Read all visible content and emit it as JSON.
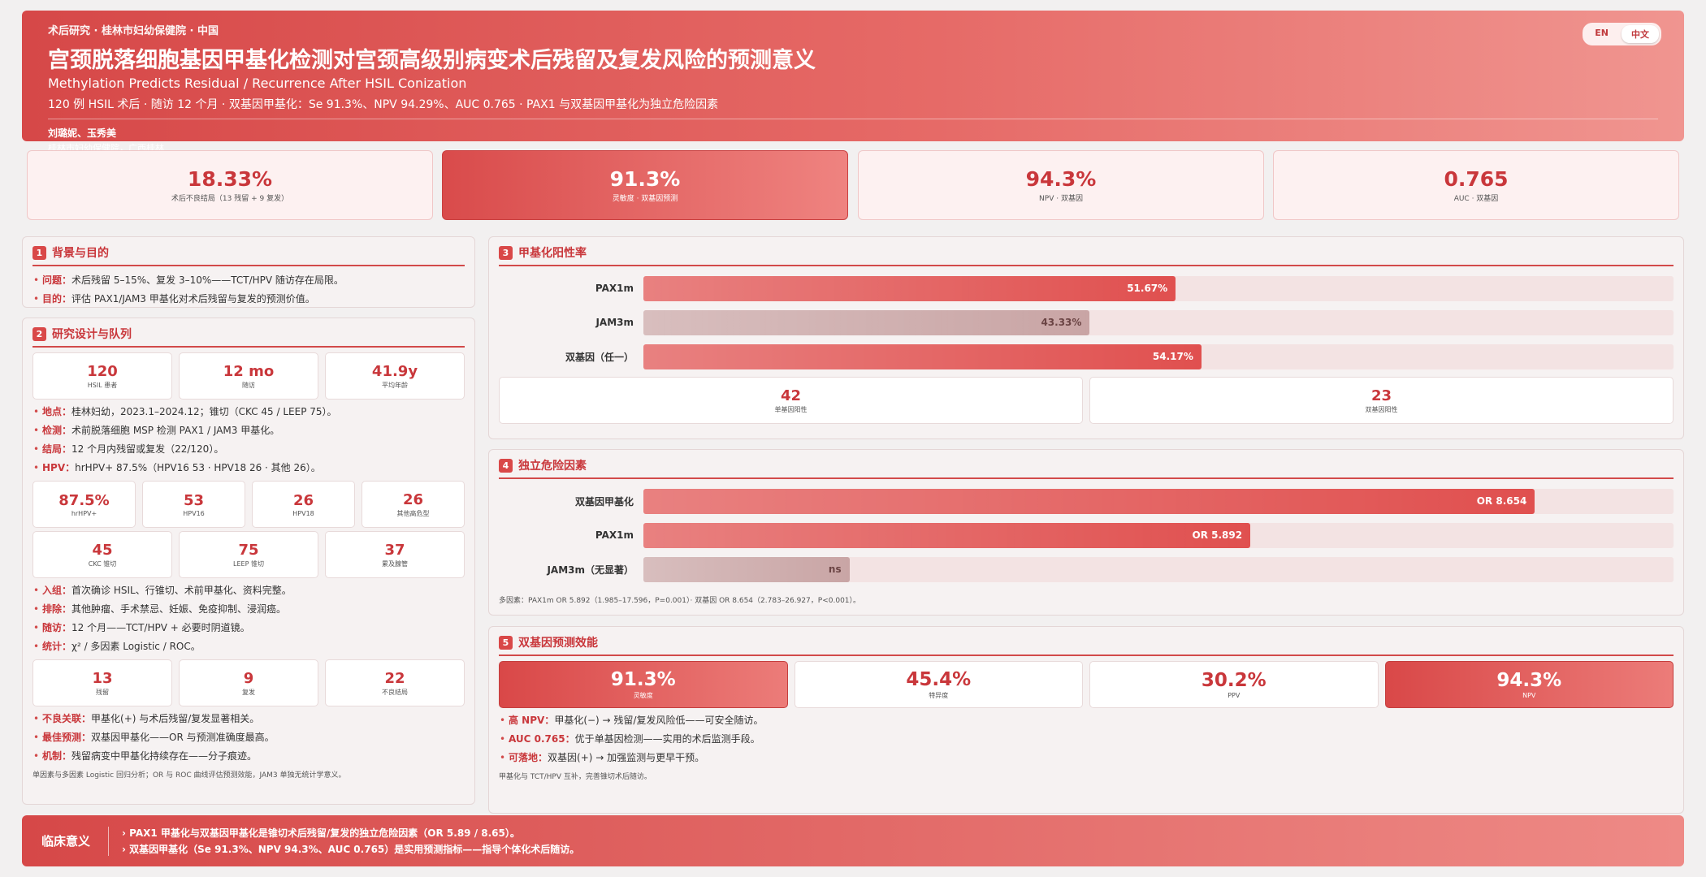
{
  "header": {
    "kicker": "术后研究 · 桂林市妇幼保健院 · 中国",
    "title": "宫颈脱落细胞基因甲基化检测对宫颈高级别病变术后残留及复发风险的预测意义",
    "subtitle": "Methylation Predicts Residual / Recurrence After HSIL Conization",
    "summary": "120 例 HSIL 术后 · 随访 12 个月 · 双基因甲基化：Se 91.3%、NPV 94.29%、AUC 0.765 · PAX1 与双基因甲基化为独立危险因素",
    "authors": "刘璐妮、玉秀美",
    "affiliation": "桂林市妇幼保健院，广西桂林",
    "languages": [
      "EN",
      "中文"
    ]
  },
  "kpis": [
    {
      "value": "18.33%",
      "label": "术后不良结局（13 残留 + 9 复发）",
      "highlight": false
    },
    {
      "value": "91.3%",
      "label": "灵敏度 · 双基因预测",
      "highlight": true
    },
    {
      "value": "94.3%",
      "label": "NPV · 双基因",
      "highlight": false
    },
    {
      "value": "0.765",
      "label": "AUC · 双基因",
      "highlight": false
    }
  ],
  "background": {
    "number": "1",
    "title": "背景与目的",
    "items": [
      {
        "label": "问题：",
        "text": "术后残留 5–15%、复发 3–10%——TCT/HPV 随访存在局限。"
      },
      {
        "label": "目的：",
        "text": "评估 PAX1/JAM3 甲基化对术后残留与复发的预测价值。"
      }
    ]
  },
  "design": {
    "number": "2",
    "title": "研究设计与队列",
    "stats_cohort": [
      {
        "value": "120",
        "label": "HSIL 患者"
      },
      {
        "value": "12 mo",
        "label": "随访"
      },
      {
        "value": "41.9y",
        "label": "平均年龄"
      }
    ],
    "items_methods": [
      {
        "label": "地点：",
        "text": "桂林妇幼，2023.1–2024.12；锥切（CKC 45 / LEEP 75）。"
      },
      {
        "label": "检测：",
        "text": "术前脱落细胞 MSP 检测 PAX1 / JAM3 甲基化。"
      },
      {
        "label": "结局：",
        "text": "12 个月内残留或复发（22/120）。"
      },
      {
        "label": "HPV：",
        "text": "hrHPV+ 87.5%（HPV16 53 · HPV18 26 · 其他 26）。"
      }
    ],
    "stats_hpv": [
      {
        "value": "87.5%",
        "label": "hrHPV+"
      },
      {
        "value": "53",
        "label": "HPV16"
      },
      {
        "value": "26",
        "label": "HPV18"
      },
      {
        "value": "26",
        "label": "其他高危型"
      }
    ],
    "stats_surgery": [
      {
        "value": "45",
        "label": "CKC 锥切"
      },
      {
        "value": "75",
        "label": "LEEP 锥切"
      },
      {
        "value": "37",
        "label": "累及腺管"
      }
    ],
    "items_criteria": [
      {
        "label": "入组：",
        "text": "首次确诊 HSIL、行锥切、术前甲基化、资料完整。"
      },
      {
        "label": "排除：",
        "text": "其他肿瘤、手术禁忌、妊娠、免疫抑制、浸润癌。"
      },
      {
        "label": "随访：",
        "text": "12 个月——TCT/HPV + 必要时阴道镜。"
      },
      {
        "label": "统计：",
        "text": "χ² / 多因素 Logistic / ROC。"
      }
    ],
    "stats_outcome": [
      {
        "value": "13",
        "label": "残留"
      },
      {
        "value": "9",
        "label": "复发"
      },
      {
        "value": "22",
        "label": "不良结局"
      }
    ],
    "items_findings": [
      {
        "label": "不良关联：",
        "text": "甲基化(+) 与术后残留/复发显著相关。"
      },
      {
        "label": "最佳预测：",
        "text": "双基因甲基化——OR 与预测准确度最高。"
      },
      {
        "label": "机制：",
        "text": "残留病变中甲基化持续存在——分子痕迹。"
      }
    ],
    "note": "单因素与多因素 Logistic 回归分析；OR 与 ROC 曲线评估预测效能，JAM3 单独无统计学意义。"
  },
  "methylation": {
    "number": "3",
    "title": "甲基化阳性率",
    "stats": [
      {
        "value": "42",
        "label": "单基因阳性"
      },
      {
        "value": "23",
        "label": "双基因阳性"
      }
    ]
  },
  "risk": {
    "number": "4",
    "title": "独立危险因素",
    "note": "多因素：PAX1m OR 5.892（1.985–17.596，P=0.001）· 双基因 OR 8.654（2.783–26.927，P<0.001）。"
  },
  "performance": {
    "number": "5",
    "title": "双基因预测效能",
    "metrics": [
      {
        "value": "91.3%",
        "label": "灵敏度",
        "highlight": true
      },
      {
        "value": "45.4%",
        "label": "特异度",
        "highlight": false
      },
      {
        "value": "30.2%",
        "label": "PPV",
        "highlight": false
      },
      {
        "value": "94.3%",
        "label": "NPV",
        "highlight": true
      }
    ],
    "items": [
      {
        "label": "高 NPV：",
        "text": "甲基化(−) → 残留/复发风险低——可安全随访。"
      },
      {
        "label": "AUC 0.765：",
        "text": "优于单基因检测——实用的术后监测手段。"
      },
      {
        "label": "可落地：",
        "text": "双基因(+) → 加强监测与更早干预。"
      }
    ],
    "note": "甲基化与 TCT/HPV 互补，完善锥切术后随访。"
  },
  "footer": {
    "label": "临床意义",
    "items": [
      "PAX1 甲基化与双基因甲基化是锥切术后残留/复发的独立危险因素（OR 5.89 / 8.65）。",
      "双基因甲基化（Se 91.3%、NPV 94.3%、AUC 0.765）是实用预测指标——指导个体化术后随访。"
    ]
  },
  "chart_data": [
    {
      "type": "bar",
      "orientation": "horizontal",
      "categories": [
        "PAX1m",
        "JAM3m",
        "双基因（任一）"
      ],
      "values": [
        51.67,
        43.33,
        54.17
      ],
      "value_labels": [
        "51.67%",
        "43.33%",
        "54.17%"
      ],
      "colors": [
        "#e0504f",
        "#c9a5a5",
        "#e0504f"
      ],
      "xlim": [
        0,
        100
      ]
    },
    {
      "type": "bar",
      "orientation": "horizontal",
      "categories": [
        "双基因甲基化",
        "PAX1m",
        "JAM3m（无显著）"
      ],
      "values": [
        8.654,
        5.892,
        2
      ],
      "value_labels": [
        "OR 8.654",
        "OR 5.892",
        "ns"
      ],
      "colors": [
        "#e0504f",
        "#e0504f",
        "#c9a5a5"
      ],
      "xlim": [
        0,
        10
      ]
    }
  ]
}
